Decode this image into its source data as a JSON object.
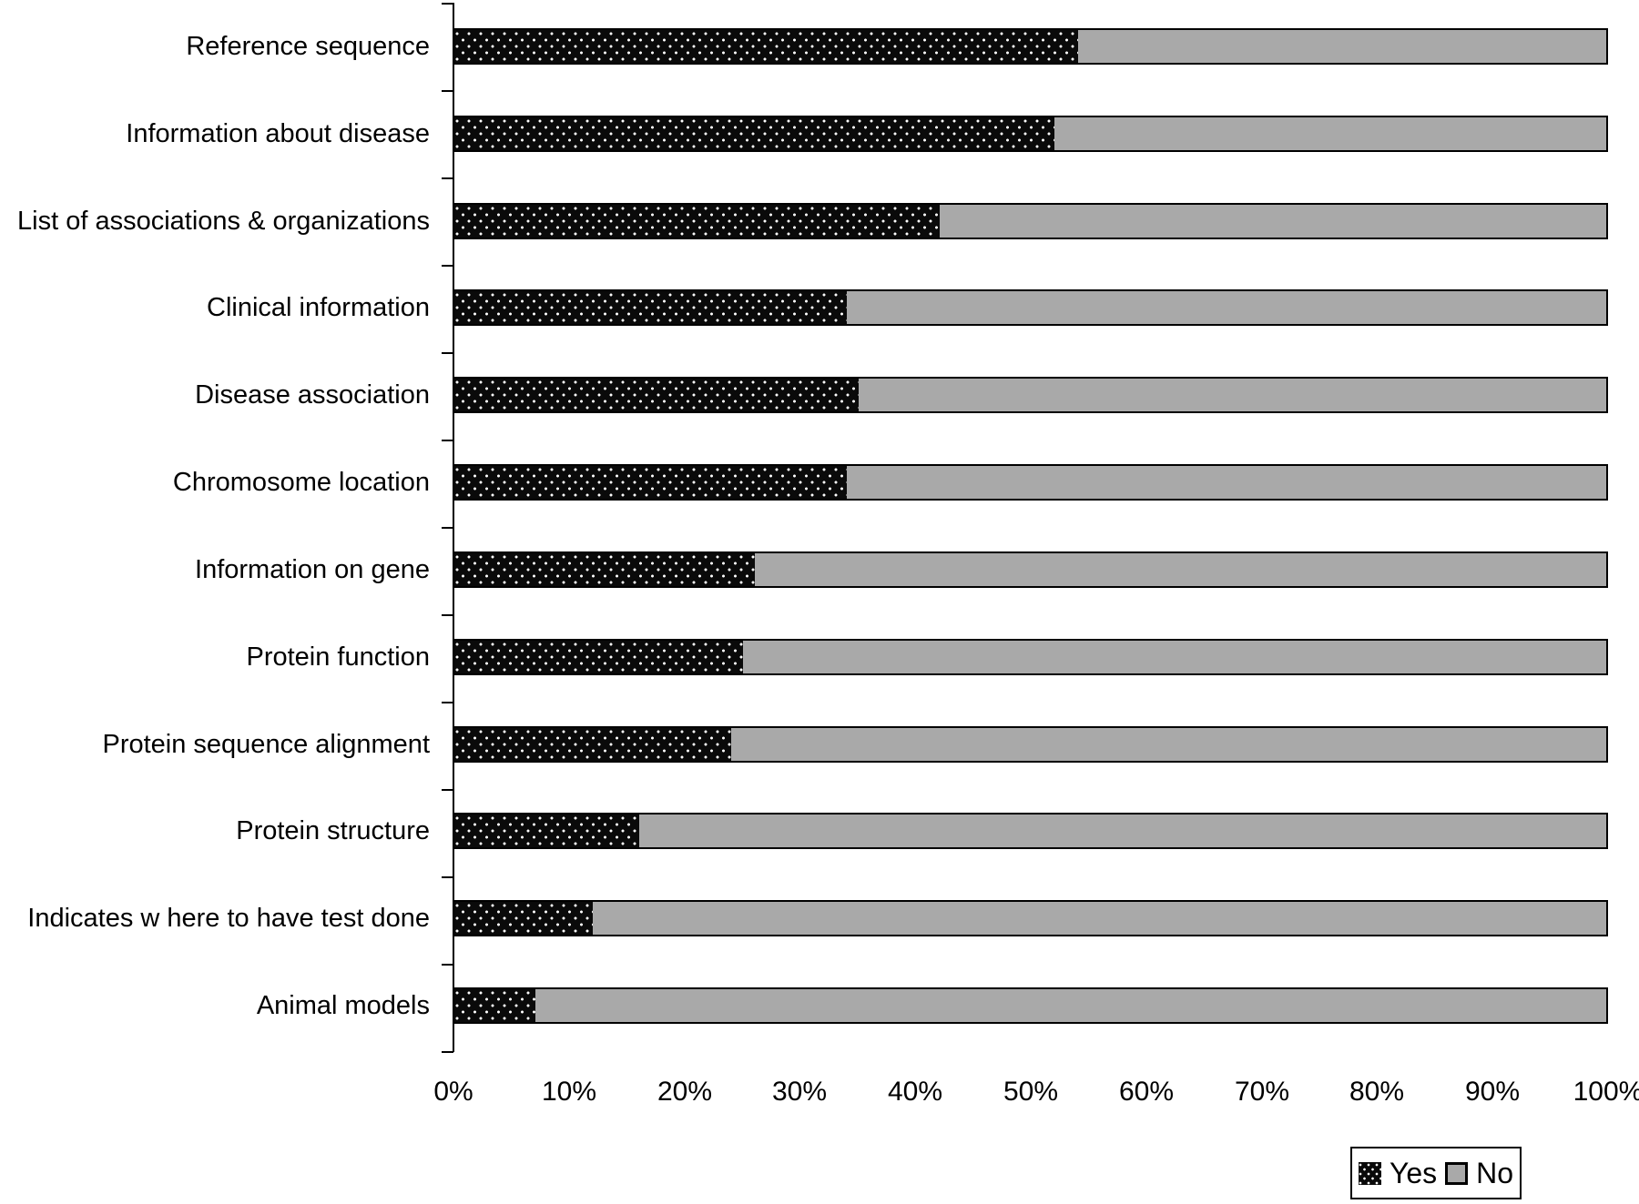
{
  "chart_data": {
    "type": "bar",
    "orientation": "horizontal",
    "stacked": true,
    "unit": "percent",
    "title": "",
    "xlabel": "",
    "ylabel": "",
    "xlim": [
      0,
      100
    ],
    "grid": false,
    "categories": [
      "Reference sequence",
      "Information about disease",
      "List of associations & organizations",
      "Clinical information",
      "Disease association",
      "Chromosome location",
      "Information on gene",
      "Protein function",
      "Protein sequence alignment",
      "Protein structure",
      "Indicates w here to have test done",
      "Animal models"
    ],
    "series": [
      {
        "name": "Yes",
        "values": [
          54,
          52,
          42,
          34,
          35,
          34,
          26,
          25,
          24,
          16,
          12,
          7
        ]
      },
      {
        "name": "No",
        "values": [
          46,
          48,
          58,
          66,
          65,
          66,
          74,
          75,
          76,
          84,
          88,
          93
        ]
      }
    ],
    "x_ticks": [
      "0%",
      "10%",
      "20%",
      "30%",
      "40%",
      "50%",
      "60%",
      "70%",
      "80%",
      "90%",
      "100%"
    ],
    "legend": {
      "position": "bottom-right",
      "entries": [
        {
          "label": "Yes",
          "style": "black-dotted"
        },
        {
          "label": "No",
          "style": "gray"
        }
      ]
    },
    "colors": {
      "yes_fill": "#0a0a0a",
      "yes_dots": "#ffffff",
      "no_fill": "#a9a9a9",
      "outline": "#000000",
      "background": "#ffffff"
    }
  }
}
